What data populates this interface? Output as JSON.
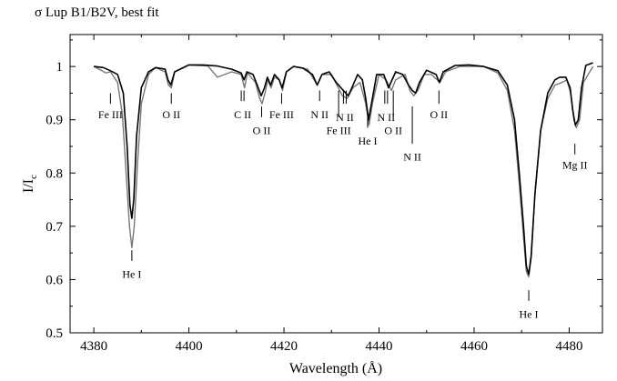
{
  "chart_data": {
    "type": "line",
    "title": "σ Lup  B1/B2V, best fit",
    "xlabel": "Wavelength (Å)",
    "ylabel_main": "I/I",
    "ylabel_sub": "c",
    "xlim": [
      4375,
      4487
    ],
    "ylim": [
      0.5,
      1.06
    ],
    "x_ticks": [
      4380,
      4400,
      4420,
      4440,
      4460,
      4480
    ],
    "y_ticks": [
      0.5,
      0.6,
      0.7,
      0.8,
      0.9,
      1.0
    ],
    "y_tick_labels": [
      "0.5",
      "0.6",
      "0.7",
      "0.8",
      "0.9",
      "1"
    ],
    "grid": false,
    "series": [
      {
        "role": "observed",
        "color": "#000000",
        "x": [
          4380,
          4382,
          4383.5,
          4385,
          4386.2,
          4387,
          4387.6,
          4388,
          4388.4,
          4389,
          4390,
          4391.5,
          4393,
          4395,
          4395.6,
          4396.2,
          4397,
          4400,
          4403,
          4406,
          4409,
          4411,
          4411.6,
          4412.2,
          4413.5,
          4414.6,
          4415.2,
          4415.9,
          4416.5,
          4417.2,
          4418,
          4419,
          4419.6,
          4420.5,
          4422,
          4424,
          4426,
          4427,
          4428,
          4429.5,
          4431,
          4432.5,
          4433.5,
          4434.3,
          4435.5,
          4436.5,
          4437.2,
          4437.8,
          4438.5,
          4439.5,
          4441,
          4442,
          4442.6,
          4443.5,
          4445,
          4446.2,
          4447,
          4447.7,
          4448.5,
          4450,
          4452,
          4452.7,
          4453.5,
          4456,
          4459,
          4462,
          4465,
          4467,
          4468.5,
          4469.5,
          4470.4,
          4471,
          4471.5,
          4472,
          4472.8,
          4474,
          4475.5,
          4477,
          4478,
          4479.3,
          4480.2,
          4480.8,
          4481.3,
          4481.9,
          4482.6,
          4483.5,
          4485
        ],
        "y": [
          1.0,
          0.998,
          0.992,
          0.985,
          0.95,
          0.85,
          0.74,
          0.715,
          0.75,
          0.87,
          0.96,
          0.99,
          0.998,
          0.995,
          0.975,
          0.965,
          0.99,
          1.003,
          1.003,
          1.001,
          0.995,
          0.988,
          0.975,
          0.99,
          0.985,
          0.96,
          0.945,
          0.96,
          0.98,
          0.965,
          0.985,
          0.975,
          0.96,
          0.99,
          1.0,
          0.997,
          0.985,
          0.965,
          0.985,
          0.99,
          0.97,
          0.955,
          0.945,
          0.96,
          0.985,
          0.975,
          0.94,
          0.9,
          0.935,
          0.985,
          0.985,
          0.96,
          0.972,
          0.99,
          0.985,
          0.965,
          0.955,
          0.95,
          0.97,
          0.993,
          0.985,
          0.97,
          0.99,
          1.002,
          1.003,
          1.0,
          0.992,
          0.965,
          0.9,
          0.8,
          0.7,
          0.625,
          0.61,
          0.645,
          0.76,
          0.88,
          0.95,
          0.975,
          0.98,
          0.98,
          0.96,
          0.915,
          0.89,
          0.9,
          0.96,
          1.002,
          1.007
        ]
      },
      {
        "role": "best fit",
        "color": "#777777",
        "x": [
          4380,
          4381.5,
          4382.5,
          4383.5,
          4385,
          4386,
          4386.8,
          4387.5,
          4388,
          4388.5,
          4389.2,
          4390,
          4391.5,
          4393,
          4395,
          4395.7,
          4396.3,
          4397,
          4400,
          4404,
          4406,
          4409,
          4411,
          4411.7,
          4412.3,
          4414,
          4414.9,
          4415.4,
          4416,
          4416.6,
          4417.3,
          4418,
          4419,
          4419.7,
          4420.5,
          4422,
          4425,
          4427,
          4428,
          4430,
          4432.3,
          4433.3,
          4434.5,
          4436,
          4437.2,
          4437.9,
          4438.6,
          4440,
          4441.5,
          4442.6,
          4443.5,
          4445.5,
          4446.5,
          4447.3,
          4448.2,
          4449.5,
          4451,
          4452.8,
          4454,
          4457,
          4462,
          4465,
          4467,
          4468.5,
          4469.5,
          4470.4,
          4471,
          4471.5,
          4472,
          4472.8,
          4474,
          4475.5,
          4477,
          4478.5,
          4479.5,
          4480.3,
          4481,
          4481.5,
          4482.2,
          4483,
          4485
        ],
        "y": [
          1.0,
          0.993,
          0.988,
          0.99,
          0.97,
          0.91,
          0.8,
          0.7,
          0.66,
          0.7,
          0.82,
          0.93,
          0.985,
          0.998,
          0.99,
          0.965,
          0.96,
          0.99,
          1.003,
          1.001,
          0.98,
          0.99,
          0.985,
          0.96,
          0.988,
          0.97,
          0.94,
          0.93,
          0.95,
          0.975,
          0.96,
          0.98,
          0.975,
          0.955,
          0.99,
          1.0,
          0.995,
          0.965,
          0.985,
          0.985,
          0.945,
          0.94,
          0.96,
          0.97,
          0.93,
          0.89,
          0.93,
          0.985,
          0.975,
          0.955,
          0.975,
          0.985,
          0.955,
          0.945,
          0.955,
          0.985,
          0.985,
          0.97,
          0.99,
          1.0,
          1.0,
          0.988,
          0.955,
          0.88,
          0.78,
          0.68,
          0.615,
          0.605,
          0.64,
          0.76,
          0.88,
          0.94,
          0.965,
          0.97,
          0.975,
          0.95,
          0.9,
          0.885,
          0.9,
          0.97,
          1.0
        ]
      }
    ],
    "annotations": [
      {
        "label": "Fe III",
        "x": 4383.5,
        "bar": [
          0.93,
          0.95
        ],
        "label_y": 0.91
      },
      {
        "label": "O II",
        "x": 4396.3,
        "bar": [
          0.93,
          0.95
        ],
        "label_y": 0.91
      },
      {
        "label": "C II",
        "x": 4411.3,
        "bar": [
          0.935,
          0.955
        ],
        "label_y": 0.91,
        "double": true
      },
      {
        "label": "O II",
        "x": 4415.3,
        "bar": [
          0.905,
          0.925
        ],
        "label_y": 0.88
      },
      {
        "label": "Fe III",
        "x": 4419.5,
        "bar": [
          0.93,
          0.95
        ],
        "label_y": 0.91
      },
      {
        "label": "N II",
        "x": 4427.5,
        "bar": [
          0.935,
          0.955
        ],
        "label_y": 0.91
      },
      {
        "label": "Fe III",
        "x": 4431.5,
        "bar": [
          0.905,
          0.955
        ],
        "label_y": 0.88
      },
      {
        "label": "N II",
        "x": 4432.8,
        "bar": [
          0.93,
          0.955
        ],
        "label_y": 0.905,
        "double": true
      },
      {
        "label": "He I",
        "x": 4437.6,
        "bar": [
          0.885,
          0.905
        ],
        "label_y": 0.86
      },
      {
        "label": "N II",
        "x": 4441.5,
        "bar": [
          0.93,
          0.955
        ],
        "label_y": 0.905,
        "double": true
      },
      {
        "label": "O II",
        "x": 4443,
        "bar": [
          0.905,
          0.955
        ],
        "label_y": 0.88
      },
      {
        "label": "N II",
        "x": 4447,
        "bar": [
          0.855,
          0.925
        ],
        "label_y": 0.83
      },
      {
        "label": "O II",
        "x": 4452.6,
        "bar": [
          0.93,
          0.955
        ],
        "label_y": 0.91
      },
      {
        "label": "Mg II",
        "x": 4481.2,
        "bar": [
          0.835,
          0.855
        ],
        "label_y": 0.815
      },
      {
        "label": "He I",
        "x": 4388,
        "bar": [
          0.635,
          0.655
        ],
        "label_y": 0.61
      },
      {
        "label": "He I",
        "x": 4471.5,
        "bar": [
          0.56,
          0.58
        ],
        "label_y": 0.535
      }
    ]
  }
}
